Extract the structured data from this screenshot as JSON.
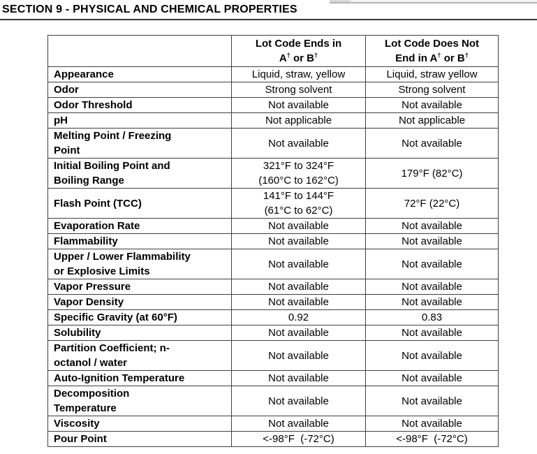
{
  "section_title": "SECTION 9 - PHYSICAL AND CHEMICAL PROPERTIES",
  "colors": {
    "table-border": "#3f3f3f",
    "rule": "#383838",
    "artifact-block": "#d8d8e0",
    "artifact-line": "#b4b4b4",
    "artifact-strip": "#f4f4f4"
  },
  "table": {
    "headers": [
      "",
      "Lot Code Ends in\nA† or B†",
      "Lot Code Does Not\nEnd in A† or B†"
    ],
    "rows": [
      {
        "property": "Appearance",
        "lot_a": "Liquid, straw, yellow",
        "lot_b": "Liquid, straw yellow"
      },
      {
        "property": "Odor",
        "lot_a": "Strong solvent",
        "lot_b": "Strong solvent"
      },
      {
        "property": "Odor Threshold",
        "lot_a": "Not available",
        "lot_b": "Not available"
      },
      {
        "property": "pH",
        "lot_a": "Not applicable",
        "lot_b": "Not applicable"
      },
      {
        "property": "Melting Point / Freezing\nPoint",
        "lot_a": "Not available",
        "lot_b": "Not available"
      },
      {
        "property": "Initial Boiling Point and\nBoiling Range",
        "lot_a": "321°F to 324°F\n(160°C to 162°C)",
        "lot_b": "179°F (82°C)"
      },
      {
        "property": "Flash Point (TCC)",
        "lot_a": "141°F to 144°F\n(61°C to 62°C)",
        "lot_b": "72°F (22°C)"
      },
      {
        "property": "Evaporation Rate",
        "lot_a": "Not available",
        "lot_b": "Not available"
      },
      {
        "property": "Flammability",
        "lot_a": "Not available",
        "lot_b": "Not available"
      },
      {
        "property": "Upper / Lower Flammability\nor Explosive Limits",
        "lot_a": "Not available",
        "lot_b": "Not available"
      },
      {
        "property": "Vapor Pressure",
        "lot_a": "Not available",
        "lot_b": "Not available"
      },
      {
        "property": "Vapor Density",
        "lot_a": "Not available",
        "lot_b": "Not available"
      },
      {
        "property": "Specific Gravity (at 60°F)",
        "lot_a": "0.92",
        "lot_b": "0.83"
      },
      {
        "property": "Solubility",
        "lot_a": "Not available",
        "lot_b": "Not available"
      },
      {
        "property": "Partition Coefficient; n-\noctanol / water",
        "lot_a": "Not available",
        "lot_b": "Not available"
      },
      {
        "property": "Auto-Ignition Temperature",
        "lot_a": "Not available",
        "lot_b": "Not available"
      },
      {
        "property": "Decomposition\nTemperature",
        "lot_a": "Not available",
        "lot_b": "Not available"
      },
      {
        "property": "Viscosity",
        "lot_a": "Not available",
        "lot_b": "Not available"
      },
      {
        "property": "Pour Point",
        "lot_a": "<-98°F  (-72°C)",
        "lot_b": "<-98°F  (-72°C)"
      }
    ]
  }
}
